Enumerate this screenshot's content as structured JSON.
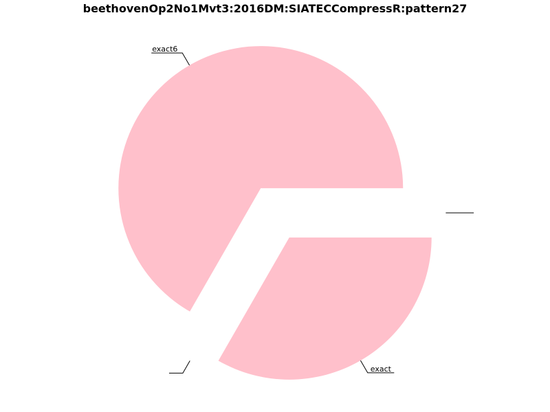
{
  "chart_data": {
    "type": "pie",
    "title": "beethovenOp2No1Mvt3:2016DM:SIATECCompressR:pattern27",
    "slices": [
      {
        "label": "exact6",
        "fraction": 0.667,
        "color": "#ffc0cb"
      },
      {
        "label": "",
        "fraction": 0.0,
        "color": "#ffc0cb"
      },
      {
        "label": "exact",
        "fraction": 0.333,
        "color": "#ffc0cb"
      },
      {
        "label": "",
        "fraction": 0.0,
        "color": "#ffc0cb"
      }
    ],
    "start_angle_deg": 0,
    "exploded": true,
    "leader_line_color": "#000000",
    "background": "#ffffff"
  }
}
